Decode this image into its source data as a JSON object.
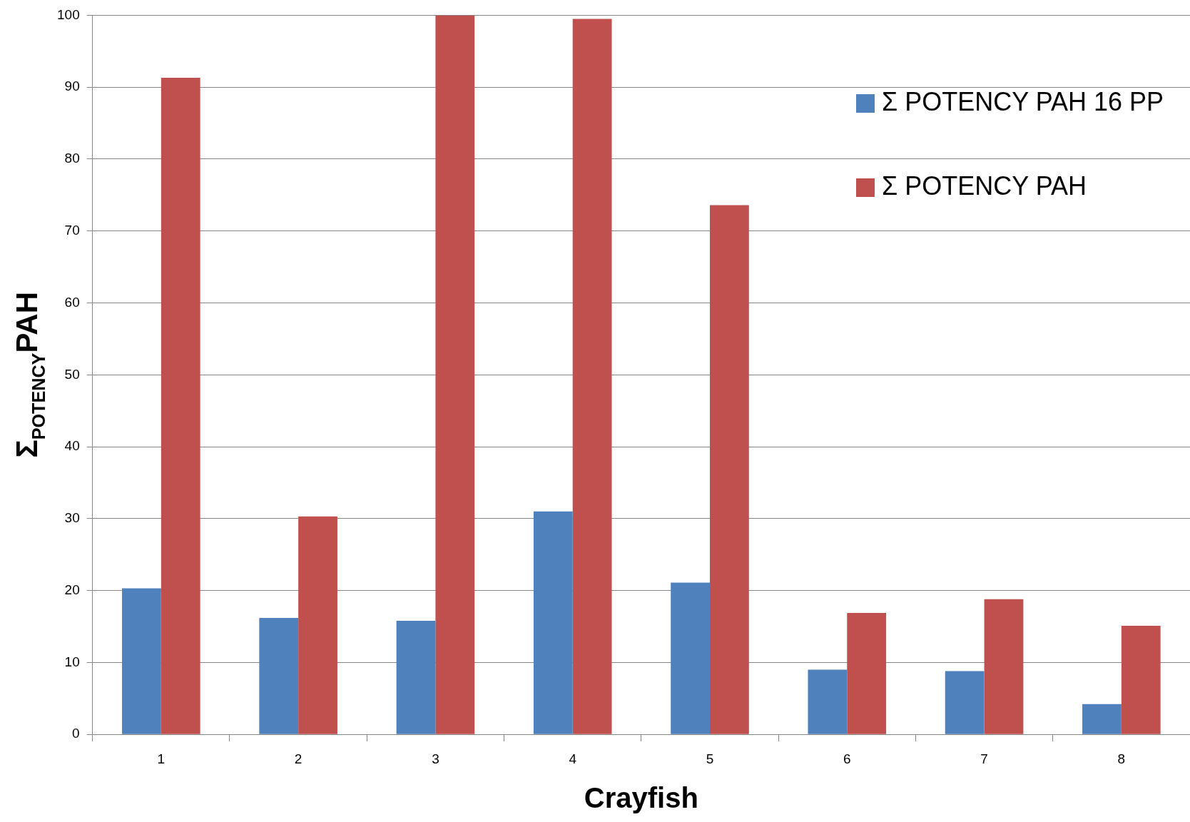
{
  "chart_data": {
    "type": "bar",
    "xlabel": "Crayfish",
    "ylabel": "Σ$_{POTENCY}$PAH",
    "categories": [
      "1",
      "2",
      "3",
      "4",
      "5",
      "6",
      "7",
      "8"
    ],
    "series": [
      {
        "name": "Σ POTENCY PAH 16 PP",
        "color": "#4f81bd",
        "values": [
          20.3,
          16.2,
          15.8,
          31.0,
          21.1,
          9.0,
          8.8,
          4.2
        ]
      },
      {
        "name": "Σ POTENCY PAH",
        "color": "#c0504d",
        "values": [
          91.3,
          30.3,
          100,
          99.5,
          73.6,
          16.9,
          18.8,
          15.1
        ]
      }
    ],
    "ylim": [
      0,
      100
    ],
    "yticks": [
      0,
      10,
      20,
      30,
      40,
      50,
      60,
      70,
      80,
      90,
      100
    ],
    "grid": "y",
    "legend": "top right"
  }
}
